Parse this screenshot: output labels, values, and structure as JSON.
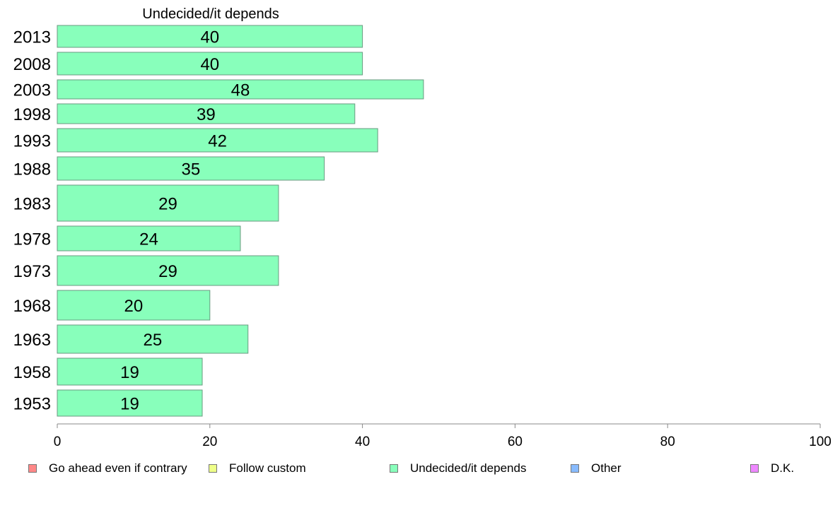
{
  "chart_data": {
    "type": "bar",
    "orientation": "horizontal",
    "title": "Undecided/it depends",
    "categories": [
      "2013",
      "2008",
      "2003",
      "1998",
      "1993",
      "1988",
      "1983",
      "1978",
      "1973",
      "1968",
      "1963",
      "1958",
      "1953"
    ],
    "series": [
      {
        "name": "Undecided/it depends",
        "values": [
          40,
          40,
          48,
          39,
          42,
          35,
          29,
          24,
          29,
          20,
          25,
          19,
          19
        ],
        "color": "#88ffbb"
      }
    ],
    "xlim": [
      0,
      100
    ],
    "xticks": [
      "0",
      "20",
      "40",
      "60",
      "80",
      "100"
    ],
    "grid": false,
    "legend_position": "bottom"
  },
  "legend": [
    {
      "label": "Go ahead even if contrary",
      "color": "#ff8888"
    },
    {
      "label": "Follow custom",
      "color": "#eeff88"
    },
    {
      "label": "Undecided/it depends",
      "color": "#88ffbb"
    },
    {
      "label": "Other",
      "color": "#88bbff"
    },
    {
      "label": "D.K.",
      "color": "#ee88ff"
    }
  ]
}
